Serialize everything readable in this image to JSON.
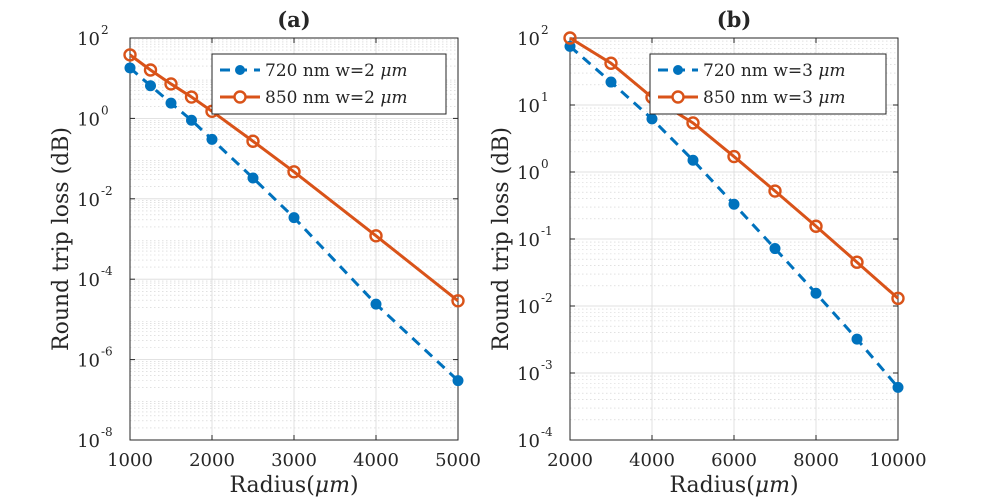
{
  "chart_data": [
    {
      "panel": "a",
      "type": "line",
      "title": "(a)",
      "xlabel": "Radius(",
      "xlabel_unit": "μm",
      "xlabel_close": ")",
      "ylabel": "Round trip loss (dB)",
      "xlim": [
        1000,
        5000
      ],
      "ylim": [
        1e-08,
        100
      ],
      "yscale": "log",
      "xticks": [
        1000,
        2000,
        3000,
        4000,
        5000
      ],
      "xtick_labels": [
        "1000",
        "2000",
        "3000",
        "4000",
        "5000"
      ],
      "yticks_exp": [
        2,
        0,
        -2,
        -4,
        -6,
        -8
      ],
      "grid": true,
      "legend_position": "top-right",
      "series": [
        {
          "name": "720 nm w=2",
          "name_unit": "μm",
          "color": "#0072BD",
          "style": "dashed",
          "marker": "filled-circle",
          "x": [
            1000,
            1250,
            1500,
            1750,
            2000,
            2500,
            3000,
            4000,
            5000
          ],
          "values": [
            18,
            6.5,
            2.4,
            0.9,
            0.3,
            0.033,
            0.0034,
            2.4e-05,
            3e-07
          ]
        },
        {
          "name": "850 nm w=2",
          "name_unit": "μm",
          "color": "#D95319",
          "style": "solid",
          "marker": "open-circle",
          "x": [
            1000,
            1250,
            1500,
            1750,
            2000,
            2500,
            3000,
            4000,
            5000
          ],
          "values": [
            38,
            16,
            7.2,
            3.4,
            1.5,
            0.27,
            0.047,
            0.0012,
            2.9e-05
          ]
        }
      ]
    },
    {
      "panel": "b",
      "type": "line",
      "title": "(b)",
      "xlabel": "Radius(",
      "xlabel_unit": "μm",
      "xlabel_close": ")",
      "ylabel": "Round trip loss (dB)",
      "xlim": [
        2000,
        10000
      ],
      "ylim": [
        0.0001,
        100
      ],
      "yscale": "log",
      "xticks": [
        2000,
        4000,
        6000,
        8000,
        10000
      ],
      "xtick_labels": [
        "2000",
        "4000",
        "6000",
        "8000",
        "10000"
      ],
      "yticks_exp": [
        2,
        1,
        0,
        -1,
        -2,
        -3,
        -4
      ],
      "grid": true,
      "legend_position": "top-right",
      "series": [
        {
          "name": "720 nm w=3",
          "name_unit": "μm",
          "color": "#0072BD",
          "style": "dashed",
          "marker": "filled-circle",
          "x": [
            2000,
            3000,
            4000,
            5000,
            6000,
            7000,
            8000,
            9000,
            10000
          ],
          "values": [
            75,
            22,
            6.2,
            1.5,
            0.33,
            0.072,
            0.0155,
            0.0032,
            0.00061
          ]
        },
        {
          "name": "850 nm w=3",
          "name_unit": "μm",
          "color": "#D95319",
          "style": "solid",
          "marker": "open-circle",
          "x": [
            2000,
            3000,
            4000,
            5000,
            6000,
            7000,
            8000,
            9000,
            10000
          ],
          "values": [
            100,
            42,
            13,
            5.4,
            1.7,
            0.52,
            0.155,
            0.045,
            0.013
          ]
        }
      ]
    }
  ]
}
